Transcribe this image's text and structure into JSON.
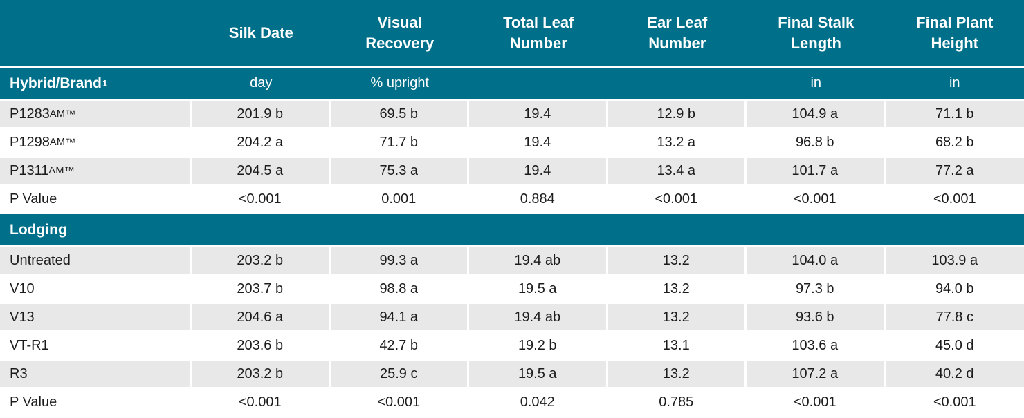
{
  "theme": {
    "teal": "#00708a",
    "stripe": "#e8e8e9",
    "text": "#1c1c1c",
    "header_text": "#ffffff"
  },
  "table": {
    "columns": [
      {
        "label": "Silk Date",
        "unit": "day"
      },
      {
        "label": "Visual Recovery",
        "unit": "% upright"
      },
      {
        "label": "Total Leaf Number",
        "unit": ""
      },
      {
        "label": "Ear Leaf Number",
        "unit": ""
      },
      {
        "label": "Final Stalk Length",
        "unit": "in"
      },
      {
        "label": "Final Plant Height",
        "unit": "in"
      }
    ],
    "row_header": {
      "label": "Hybrid/Brand",
      "sup": "1"
    },
    "sections": [
      {
        "header": "",
        "rows": [
          {
            "label": "P1283",
            "label_smallcaps": "AM",
            "label_tm": "™",
            "values": [
              "201.9 b",
              "69.5 b",
              "19.4",
              "12.9 b",
              "104.9 a",
              "71.1 b"
            ]
          },
          {
            "label": "P1298",
            "label_smallcaps": "AM",
            "label_tm": "™",
            "values": [
              "204.2 a",
              "71.7 b",
              "19.4",
              "13.2 a",
              "96.8 b",
              "68.2 b"
            ]
          },
          {
            "label": "P1311",
            "label_smallcaps": "AM",
            "label_tm": "™",
            "values": [
              "204.5 a",
              "75.3 a",
              "19.4",
              "13.4 a",
              "101.7 a",
              "77.2 a"
            ]
          },
          {
            "label": "P Value",
            "values": [
              "<0.001",
              "0.001",
              "0.884",
              "<0.001",
              "<0.001",
              "<0.001"
            ]
          }
        ]
      },
      {
        "header": "Lodging",
        "rows": [
          {
            "label": "Untreated",
            "values": [
              "203.2 b",
              "99.3 a",
              "19.4 ab",
              "13.2",
              "104.0 a",
              "103.9 a"
            ]
          },
          {
            "label": "V10",
            "values": [
              "203.7 b",
              "98.8 a",
              "19.5 a",
              "13.2",
              "97.3 b",
              "94.0 b"
            ]
          },
          {
            "label": "V13",
            "values": [
              "204.6 a",
              "94.1 a",
              "19.4 ab",
              "13.2",
              "93.6 b",
              "77.8 c"
            ]
          },
          {
            "label": "VT-R1",
            "values": [
              "203.6 b",
              "42.7 b",
              "19.2 b",
              "13.1",
              "103.6 a",
              "45.0 d"
            ]
          },
          {
            "label": "R3",
            "values": [
              "203.2 b",
              "25.9 c",
              "19.5 a",
              "13.2",
              "107.2 a",
              "40.2 d"
            ]
          },
          {
            "label": "P Value",
            "values": [
              "<0.001",
              "<0.001",
              "0.042",
              "0.785",
              "<0.001",
              "<0.001"
            ]
          }
        ]
      }
    ]
  }
}
